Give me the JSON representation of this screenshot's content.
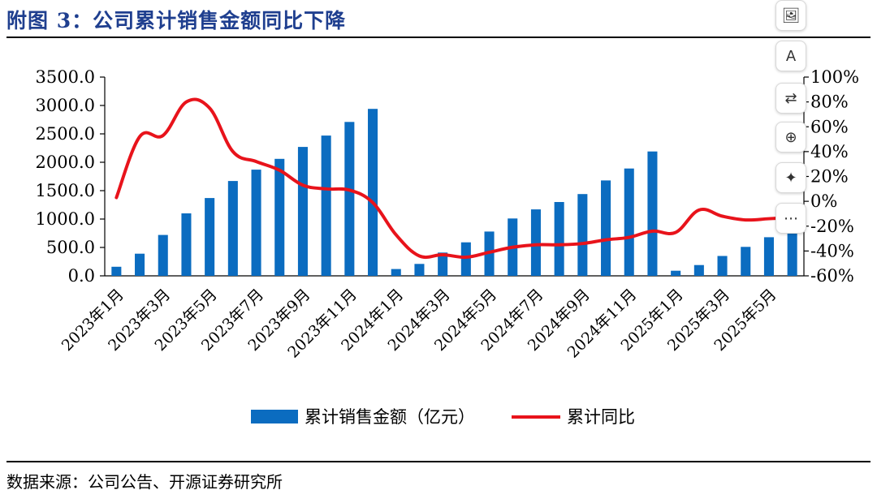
{
  "title": "附图 3：公司累计销售金额同比下降",
  "source": "数据来源：公司公告、开源证券研究所",
  "toolbar": {
    "buttons": [
      {
        "name": "image-edit-icon",
        "glyph": "🖼"
      },
      {
        "name": "text-style-icon",
        "glyph": "A"
      },
      {
        "name": "swap-icon",
        "glyph": "⇄"
      },
      {
        "name": "zoom-in-icon",
        "glyph": "⊕"
      },
      {
        "name": "magic-edit-icon",
        "glyph": "✦"
      },
      {
        "name": "more-icon",
        "glyph": "⋯"
      }
    ]
  },
  "chart_data": {
    "type": "bar",
    "categories": [
      "2023年1月",
      "2023年2月",
      "2023年3月",
      "2023年4月",
      "2023年5月",
      "2023年6月",
      "2023年7月",
      "2023年8月",
      "2023年9月",
      "2023年10月",
      "2023年11月",
      "2023年12月",
      "2024年1月",
      "2024年2月",
      "2024年3月",
      "2024年4月",
      "2024年5月",
      "2024年6月",
      "2024年7月",
      "2024年8月",
      "2024年9月",
      "2024年10月",
      "2024年11月",
      "2024年12月",
      "2025年1月",
      "2025年2月",
      "2025年3月",
      "2025年4月",
      "2025年5月",
      "2025年6月"
    ],
    "x_tick_labels": [
      "2023年1月",
      "2023年3月",
      "2023年5月",
      "2023年7月",
      "2023年9月",
      "2023年11月",
      "2024年1月",
      "2024年3月",
      "2024年5月",
      "2024年7月",
      "2024年9月",
      "2024年11月",
      "2025年1月",
      "2025年3月",
      "2025年5月"
    ],
    "series": [
      {
        "name": "累计销售金额（亿元）",
        "type": "bar",
        "axis": "left",
        "color": "#0b6cc0",
        "values": [
          160,
          390,
          720,
          1100,
          1370,
          1670,
          1870,
          2060,
          2270,
          2470,
          2710,
          2940,
          120,
          210,
          410,
          590,
          780,
          1010,
          1170,
          1300,
          1440,
          1680,
          1890,
          2190,
          90,
          190,
          350,
          510,
          680,
          860
        ]
      },
      {
        "name": "累计同比",
        "type": "line",
        "axis": "right",
        "color": "#e8131b",
        "values": [
          3,
          52,
          53,
          80,
          75,
          40,
          32,
          25,
          13,
          10,
          9,
          -1,
          -27,
          -44,
          -43,
          -45,
          -41,
          -37,
          -35,
          -35,
          -34,
          -31,
          -29,
          -24,
          -25,
          -7,
          -12,
          -15,
          -14,
          -13
        ]
      }
    ],
    "y_left": {
      "ylim": [
        0,
        3500
      ],
      "ticks": [
        "0.0",
        "500.0",
        "1000.0",
        "1500.0",
        "2000.0",
        "2500.0",
        "3000.0",
        "3500.0"
      ]
    },
    "y_right": {
      "ylim": [
        -60,
        100
      ],
      "ticks": [
        "-60%",
        "-40%",
        "-20%",
        "0%",
        "20%",
        "40%",
        "60%",
        "80%",
        "100%"
      ]
    },
    "legend": {
      "placement": "bottom",
      "items": [
        "累计销售金额（亿元）",
        "累计同比"
      ]
    },
    "grid": false
  }
}
